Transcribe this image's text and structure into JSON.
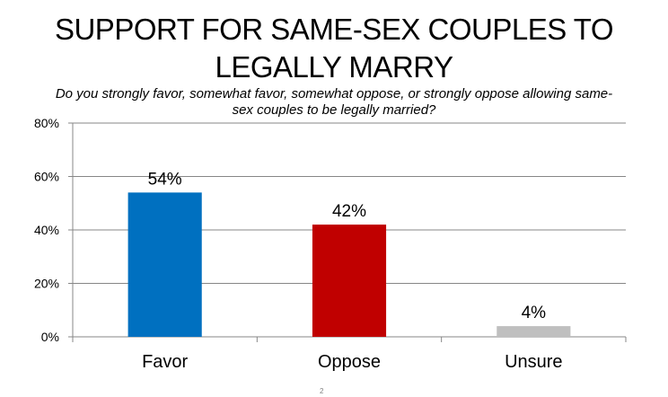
{
  "chart_data": {
    "type": "bar",
    "title": "SUPPORT FOR SAME-SEX COUPLES TO LEGALLY MARRY",
    "subtitle": "Do you strongly favor, somewhat favor, somewhat oppose, or strongly oppose allowing same-sex couples to be legally married?",
    "categories": [
      "Favor",
      "Oppose",
      "Unsure"
    ],
    "values": [
      54,
      42,
      4
    ],
    "value_labels": [
      "54%",
      "42%",
      "4%"
    ],
    "colors": [
      "#0070c0",
      "#c00000",
      "#bfbfbf"
    ],
    "ylim": [
      0,
      80
    ],
    "yticks": [
      0,
      20,
      40,
      60,
      80
    ],
    "ytick_labels": [
      "0%",
      "20%",
      "40%",
      "60%",
      "80%"
    ],
    "xlabel": "",
    "ylabel": "",
    "grid": true,
    "legend": "none"
  },
  "footer": {
    "page_number": "2"
  }
}
